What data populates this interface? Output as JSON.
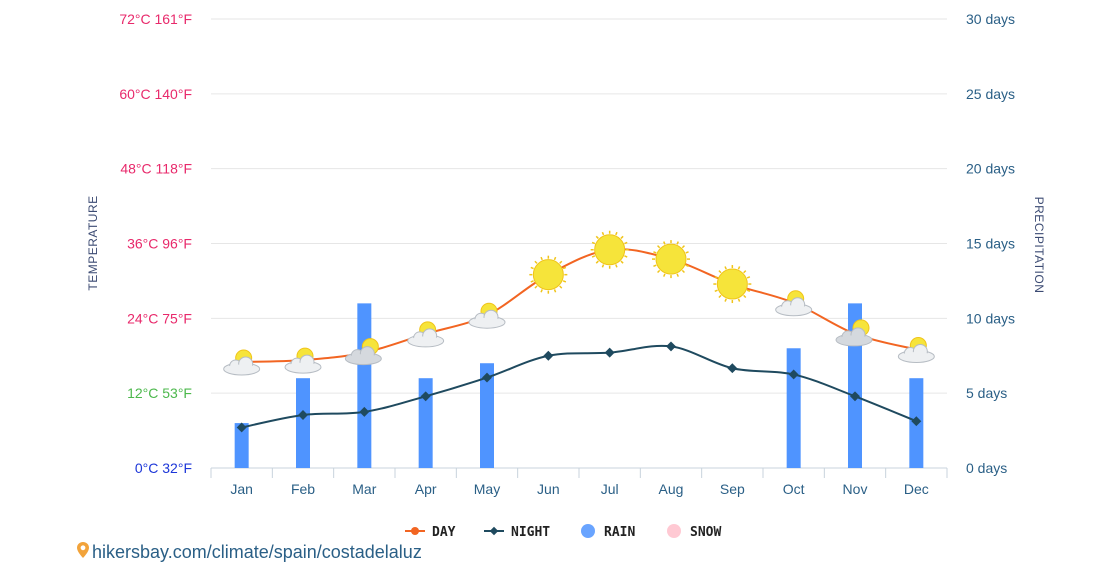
{
  "chart_data": {
    "type": "line+bar",
    "categories": [
      "Jan",
      "Feb",
      "Mar",
      "Apr",
      "May",
      "Jun",
      "Jul",
      "Aug",
      "Sep",
      "Oct",
      "Nov",
      "Dec"
    ],
    "series": [
      {
        "name": "DAY",
        "kind": "line",
        "color": "#f26522",
        "axis": "temperature",
        "values": [
          17,
          17.3,
          18.5,
          21.5,
          24.5,
          31,
          35,
          33.5,
          29.5,
          26.5,
          21.5,
          19
        ]
      },
      {
        "name": "NIGHT",
        "kind": "line",
        "color": "#1f4a5f",
        "axis": "temperature",
        "values": [
          6.5,
          8.5,
          9,
          11.5,
          14.5,
          18,
          18.5,
          19.5,
          16,
          15,
          11.5,
          7.5
        ]
      },
      {
        "name": "RAIN",
        "kind": "bar",
        "color": "#4f94ff",
        "axis": "precipitation",
        "values": [
          3,
          6,
          11,
          6,
          7,
          0,
          0,
          0,
          0,
          8,
          11,
          6
        ]
      },
      {
        "name": "SNOW",
        "kind": "bar",
        "color": "#ffc0cb",
        "axis": "precipitation",
        "values": [
          0,
          0,
          0,
          0,
          0,
          0,
          0,
          0,
          0,
          0,
          0,
          0
        ]
      }
    ],
    "weather_icons": [
      "partly-cloudy",
      "partly-cloudy",
      "cloudy-sun",
      "partly-cloudy",
      "partly-cloudy",
      "sun",
      "sun",
      "sun",
      "sun",
      "partly-cloudy",
      "cloudy-sun",
      "partly-cloudy"
    ],
    "left_axis": {
      "label": "TEMPERATURE",
      "ticks": [
        {
          "value": 0,
          "text": "0°C 32°F",
          "color": "#1c36d8"
        },
        {
          "value": 12,
          "text": "12°C 53°F",
          "color": "#4cb84c"
        },
        {
          "value": 24,
          "text": "24°C 75°F",
          "color": "#e8296b"
        },
        {
          "value": 36,
          "text": "36°C 96°F",
          "color": "#e8296b"
        },
        {
          "value": 48,
          "text": "48°C 118°F",
          "color": "#e8296b"
        },
        {
          "value": 60,
          "text": "60°C 140°F",
          "color": "#e8296b"
        },
        {
          "value": 72,
          "text": "72°C 161°F",
          "color": "#e8296b"
        }
      ],
      "ylim": [
        0,
        72
      ]
    },
    "right_axis": {
      "label": "PRECIPITATION",
      "ticks": [
        {
          "value": 0,
          "text": "0 days"
        },
        {
          "value": 5,
          "text": "5 days"
        },
        {
          "value": 10,
          "text": "10 days"
        },
        {
          "value": 15,
          "text": "15 days"
        },
        {
          "value": 20,
          "text": "20 days"
        },
        {
          "value": 25,
          "text": "25 days"
        },
        {
          "value": 30,
          "text": "30 days"
        }
      ],
      "ylim": [
        0,
        30
      ]
    },
    "grid": true,
    "legend": {
      "position": "bottom-center",
      "items": [
        "DAY",
        "NIGHT",
        "RAIN",
        "SNOW"
      ]
    }
  },
  "footer": {
    "text": "hikersbay.com/climate/spain/costadelaluz",
    "icon": "location-pin-icon"
  }
}
